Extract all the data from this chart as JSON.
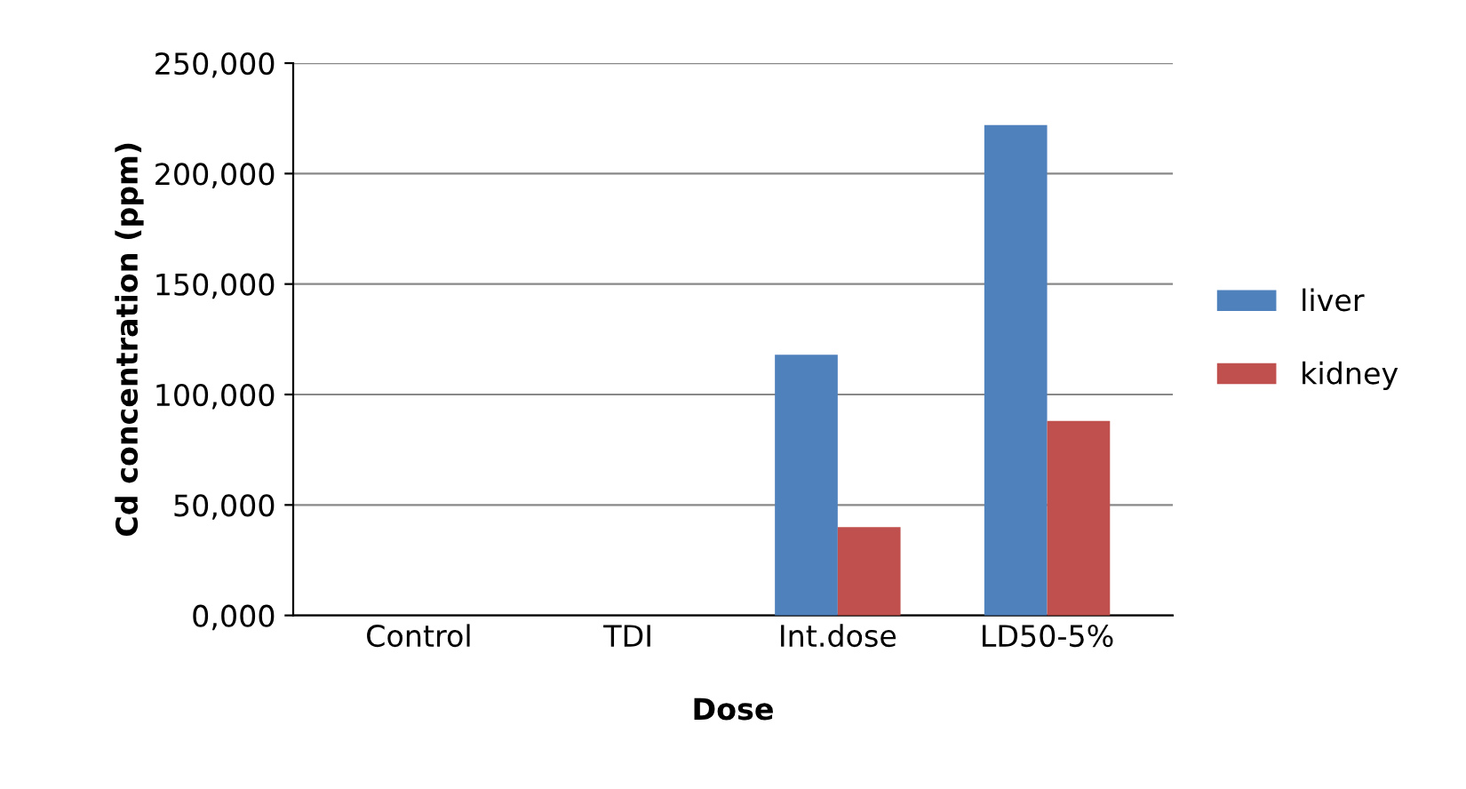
{
  "chart_data": {
    "type": "bar",
    "xlabel": "Dose",
    "ylabel": "Cd concentration (ppm)",
    "categories": [
      "Control",
      "TDI",
      "Int.dose",
      "LD50-5%"
    ],
    "series": [
      {
        "name": "liver",
        "color": "#4f81bd",
        "values": [
          0,
          0,
          118000,
          222000
        ]
      },
      {
        "name": "kidney",
        "color": "#c0504d",
        "values": [
          0,
          0,
          40000,
          88000
        ]
      }
    ],
    "ylim": [
      0,
      250000
    ],
    "yticks": [
      {
        "value": 0,
        "label": "0,000"
      },
      {
        "value": 50000,
        "label": "50,000"
      },
      {
        "value": 100000,
        "label": "100,000"
      },
      {
        "value": 150000,
        "label": "150,000"
      },
      {
        "value": 200000,
        "label": "200,000"
      },
      {
        "value": 250000,
        "label": "250,000"
      }
    ],
    "grid": "y",
    "legend": "right"
  }
}
